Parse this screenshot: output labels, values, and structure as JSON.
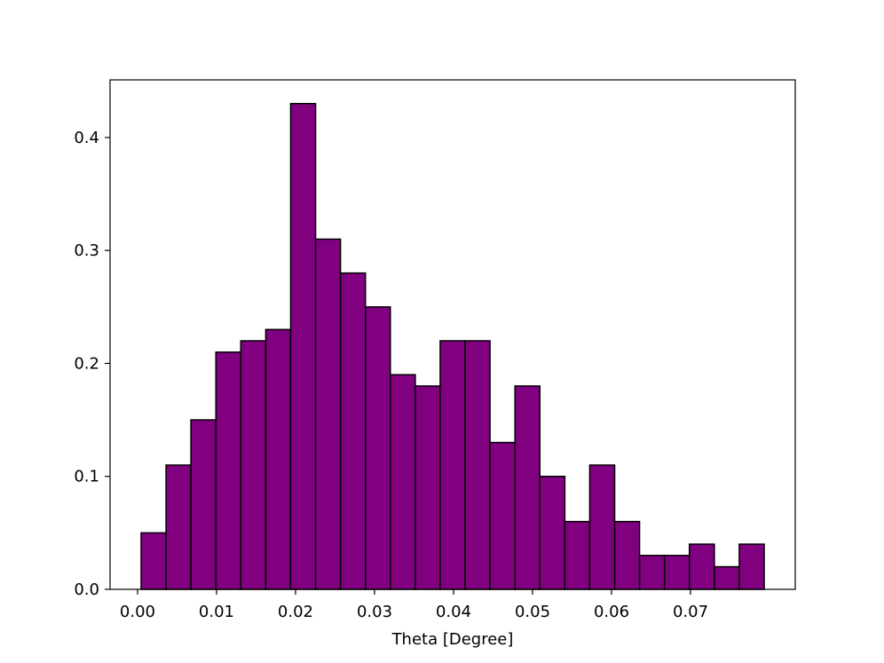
{
  "chart_data": {
    "type": "histogram",
    "xlabel": "Theta [Degree]",
    "bins": [
      0.00045,
      0.00361,
      0.00676,
      0.00992,
      0.01307,
      0.01623,
      0.01938,
      0.02254,
      0.02569,
      0.02885,
      0.032,
      0.03516,
      0.03831,
      0.04147,
      0.04462,
      0.04778,
      0.05093,
      0.05409,
      0.05724,
      0.0604,
      0.06355,
      0.06671,
      0.06986,
      0.07302,
      0.07617,
      0.07933
    ],
    "values": [
      0.05,
      0.11,
      0.15,
      0.21,
      0.22,
      0.23,
      0.43,
      0.31,
      0.28,
      0.25,
      0.19,
      0.18,
      0.22,
      0.22,
      0.13,
      0.18,
      0.1,
      0.06,
      0.11,
      0.06,
      0.03,
      0.03,
      0.04,
      0.02,
      0.04
    ],
    "color": "#800080",
    "edgecolor": "#000000",
    "xlim": [
      -0.00348,
      0.08326
    ],
    "xticks": [
      {
        "value": 0,
        "label": "0.00"
      },
      0.01,
      0.02,
      0.03,
      0.04,
      0.05,
      0.06,
      0.07
    ],
    "ylim": [
      0,
      0.451
    ],
    "yticks": [
      {
        "value": 0,
        "label": "0.0"
      },
      0.1,
      0.2,
      0.3,
      0.4
    ]
  }
}
